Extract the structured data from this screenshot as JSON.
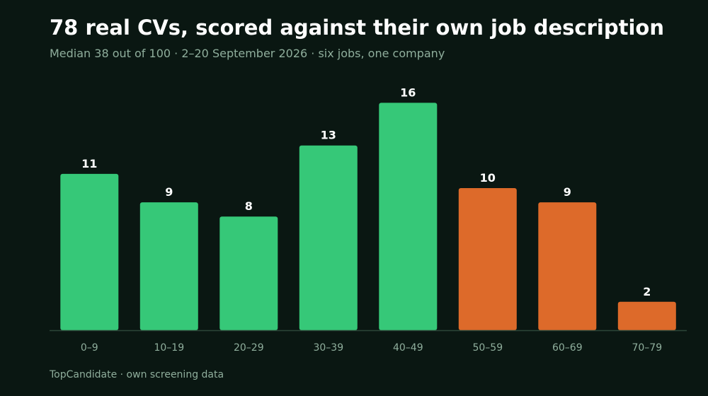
{
  "header": {
    "title": "78 real CVs, scored against their own job description",
    "subtitle": "Median 38 out of 100 · 2–20 September 2026 · six jobs, one company"
  },
  "footer": {
    "source": "TopCandidate · own screening data"
  },
  "colors": {
    "background": "#0a1712",
    "below_median": "#36c878",
    "above_median": "#dd6a2a",
    "axis": "#2c4638",
    "muted_text": "#8fae9c"
  },
  "chart_data": {
    "type": "bar",
    "title": "78 real CVs, scored against their own job description",
    "subtitle": "Median 38 out of 100 · 2–20 September 2026 · six jobs, one company",
    "xlabel": "",
    "ylabel": "",
    "categories": [
      "0–9",
      "10–19",
      "20–29",
      "30–39",
      "40–49",
      "50–59",
      "60–69",
      "70–79"
    ],
    "values": [
      11,
      9,
      8,
      13,
      16,
      10,
      9,
      2
    ],
    "bar_colors": [
      "#36c878",
      "#36c878",
      "#36c878",
      "#36c878",
      "#36c878",
      "#dd6a2a",
      "#dd6a2a",
      "#dd6a2a"
    ],
    "ylim": [
      0,
      16
    ],
    "grid": false,
    "legend": "none",
    "data_labels": true
  }
}
